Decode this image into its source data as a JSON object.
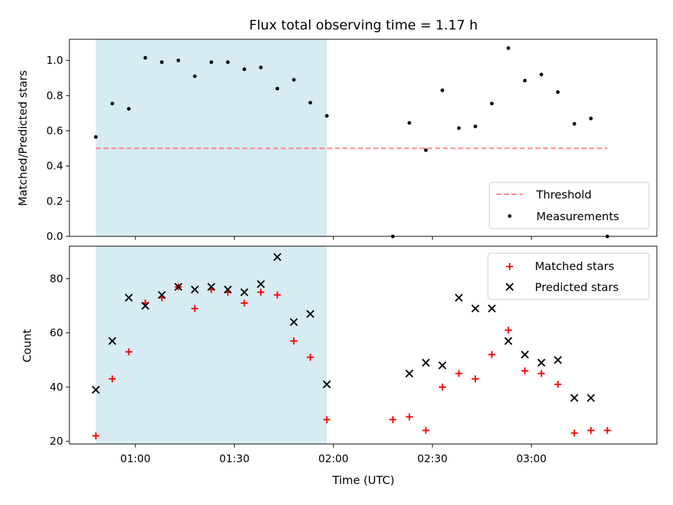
{
  "title": "Flux total observing time = 1.17 h",
  "xlabel": "Time (UTC)",
  "colors": {
    "shade": "#add8e6",
    "threshold": "#ff7f7f",
    "matched": "#ff0000",
    "predicted": "#000000",
    "measurement": "#000000"
  },
  "chart_data": [
    {
      "type": "scatter",
      "ylabel": "Matched/Predicted stars",
      "x_unit": "minutes after 00:00 UTC",
      "xlim": [
        40,
        218
      ],
      "ylim": [
        0,
        1.12
      ],
      "yticks": [
        0.0,
        0.2,
        0.4,
        0.6,
        0.8,
        1.0
      ],
      "ytick_labels": [
        "0.0",
        "0.2",
        "0.4",
        "0.6",
        "0.8",
        "1.0"
      ],
      "xticks": [
        60,
        90,
        120,
        150,
        180
      ],
      "shaded_span": [
        48,
        118
      ],
      "legend_position": "lower right",
      "threshold": {
        "name": "Threshold",
        "value": 0.5,
        "x_range": [
          48,
          203
        ]
      },
      "series": [
        {
          "name": "Measurements",
          "x": [
            48,
            53,
            58,
            63,
            68,
            73,
            78,
            83,
            88,
            93,
            98,
            103,
            108,
            113,
            118,
            138,
            143,
            148,
            153,
            158,
            163,
            168,
            173,
            178,
            183,
            188,
            193,
            198,
            203
          ],
          "y": [
            0.565,
            0.755,
            0.725,
            1.015,
            0.99,
            1.0,
            0.91,
            0.99,
            0.99,
            0.95,
            0.96,
            0.84,
            0.89,
            0.76,
            0.685,
            0.0,
            0.645,
            0.49,
            0.83,
            0.615,
            0.625,
            0.755,
            1.07,
            0.885,
            0.92,
            0.82,
            0.64,
            0.67,
            0.0
          ]
        }
      ]
    },
    {
      "type": "scatter",
      "ylabel": "Count",
      "x_unit": "minutes after 00:00 UTC",
      "xlim": [
        40,
        218
      ],
      "ylim": [
        19,
        92
      ],
      "yticks": [
        20,
        40,
        60,
        80
      ],
      "ytick_labels": [
        "20",
        "40",
        "60",
        "80"
      ],
      "xticks": [
        60,
        90,
        120,
        150,
        180
      ],
      "xtick_labels": [
        "01:00",
        "01:30",
        "02:00",
        "02:30",
        "03:00"
      ],
      "shaded_span": [
        48,
        118
      ],
      "legend_position": "upper right",
      "series": [
        {
          "name": "Matched stars",
          "marker": "+",
          "x": [
            48,
            53,
            58,
            63,
            68,
            73,
            78,
            83,
            88,
            93,
            98,
            103,
            108,
            113,
            118,
            138,
            143,
            148,
            153,
            158,
            163,
            168,
            173,
            178,
            183,
            188,
            193,
            198,
            203
          ],
          "y": [
            22,
            43,
            53,
            71,
            73,
            77,
            69,
            76,
            75,
            71,
            75,
            74,
            57,
            51,
            28,
            28,
            29,
            24,
            40,
            45,
            43,
            52,
            61,
            46,
            45,
            41,
            23,
            24,
            24
          ]
        },
        {
          "name": "Predicted stars",
          "marker": "x",
          "x": [
            48,
            53,
            58,
            63,
            68,
            73,
            78,
            83,
            88,
            93,
            98,
            103,
            108,
            113,
            118,
            143,
            148,
            153,
            158,
            163,
            168,
            173,
            178,
            183,
            188,
            193,
            198
          ],
          "y": [
            39,
            57,
            73,
            70,
            74,
            77,
            76,
            77,
            76,
            75,
            78,
            88,
            64,
            67,
            41,
            45,
            49,
            48,
            73,
            69,
            69,
            57,
            52,
            49,
            50,
            36,
            36
          ]
        }
      ]
    }
  ]
}
